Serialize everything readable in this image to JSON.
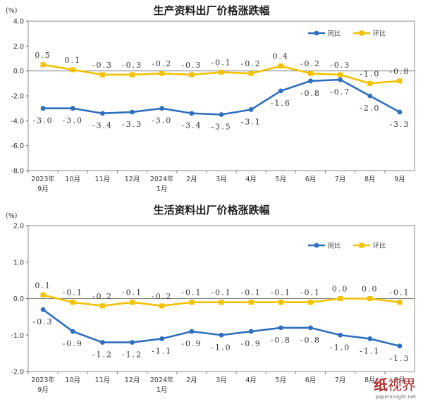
{
  "chart_data": [
    {
      "type": "line",
      "title": "生产资料出厂价格涨跌幅",
      "ylabel": "(%)",
      "ylim": [
        -8.0,
        4.0
      ],
      "yticks": [
        "4.0",
        "2.0",
        "0.0",
        "-2.0",
        "-4.0",
        "-6.0",
        "-8.0"
      ],
      "categories": [
        "2023年\n9月",
        "10月",
        "11月",
        "12月",
        "2024年\n1月",
        "2月",
        "3月",
        "4月",
        "5月",
        "6月",
        "7月",
        "8月",
        "9月"
      ],
      "legend_position": "top-right",
      "series": [
        {
          "name": "同比",
          "color": "#2e6fbf",
          "values": [
            -3.0,
            -3.0,
            -3.4,
            -3.3,
            -3.0,
            -3.4,
            -3.5,
            -3.1,
            -1.6,
            -0.8,
            -0.7,
            -2.0,
            -3.3
          ],
          "labels": [
            "-3.0",
            "-3.0",
            "-3.4",
            "-3.3",
            "-3.0",
            "-3.4",
            "-3.5",
            "-3.1",
            "-1.6",
            "-0.8",
            "-0.7",
            "-2.0",
            "-3.3"
          ]
        },
        {
          "name": "环比",
          "color": "#f2c100",
          "values": [
            0.5,
            0.1,
            -0.3,
            -0.3,
            -0.2,
            -0.3,
            -0.1,
            -0.2,
            0.4,
            -0.2,
            -0.3,
            -1.0,
            -0.8
          ],
          "labels": [
            "0.5",
            "0.1",
            "-0.3",
            "-0.3",
            "-0.2",
            "-0.3",
            "-0.1",
            "-0.2",
            "0.4",
            "-0.2",
            "-0.3",
            "-1.0",
            "-0.8"
          ]
        }
      ]
    },
    {
      "type": "line",
      "title": "生活资料出厂价格涨跌幅",
      "ylabel": "(%)",
      "ylim": [
        -2.0,
        2.0
      ],
      "yticks": [
        "2.0",
        "1.0",
        "0.0",
        "-1.0",
        "-2.0"
      ],
      "categories": [
        "2023年\n9月",
        "10月",
        "11月",
        "12月",
        "2024年\n1月",
        "2月",
        "3月",
        "4月",
        "5月",
        "6月",
        "7月",
        "8月",
        "9月"
      ],
      "legend_position": "top-right",
      "series": [
        {
          "name": "同比",
          "color": "#2e6fbf",
          "values": [
            -0.3,
            -0.9,
            -1.2,
            -1.2,
            -1.1,
            -0.9,
            -1.0,
            -0.9,
            -0.8,
            -0.8,
            -1.0,
            -1.1,
            -1.3
          ],
          "labels": [
            "-0.3",
            "-0.9",
            "-1.2",
            "-1.2",
            "-1.1",
            "-0.9",
            "-1.0",
            "-0.9",
            "-0.8",
            "-0.8",
            "-1.0",
            "-1.1",
            "-1.3"
          ]
        },
        {
          "name": "环比",
          "color": "#f2c100",
          "values": [
            0.1,
            -0.1,
            -0.2,
            -0.1,
            -0.2,
            -0.1,
            -0.1,
            -0.1,
            -0.1,
            -0.1,
            0.0,
            0.0,
            -0.1
          ],
          "labels": [
            "0.1",
            "-0.1",
            "-0.2",
            "-0.1",
            "-0.2",
            "-0.1",
            "-0.1",
            "-0.1",
            "-0.1",
            "-0.1",
            "0.0",
            "0.0",
            "-0.1"
          ]
        }
      ]
    }
  ],
  "watermark": {
    "glyph": "纸",
    "text": "视界",
    "url": "paperinsight.net"
  }
}
